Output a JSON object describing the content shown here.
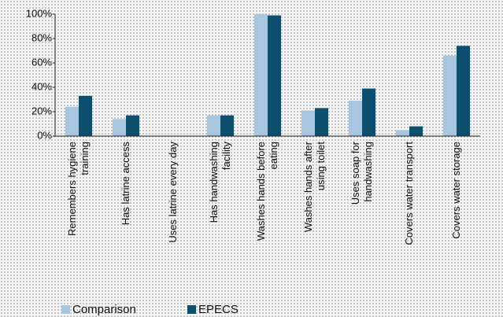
{
  "chart_data": {
    "type": "bar",
    "categories": [
      "Remembers hygiene training",
      "Has latrine access",
      "Uses latrine every day",
      "Has handwashing facility",
      "Washes hands before eating",
      "Washes hands after using toilet",
      "Uses soap for handwashing",
      "Covers water transport",
      "Covers water storage"
    ],
    "series": [
      {
        "name": "Comparison",
        "color": "#a9c6e0",
        "values": [
          24,
          14,
          0,
          17,
          100,
          21,
          29,
          5,
          66
        ]
      },
      {
        "name": "EPECS",
        "color": "#0e4f6d",
        "values": [
          33,
          17,
          0,
          17,
          99,
          23,
          39,
          8,
          74
        ]
      }
    ],
    "ylim": [
      0,
      100
    ],
    "yticks": [
      {
        "value": 0,
        "label": "0%"
      },
      {
        "value": 20,
        "label": "20%"
      },
      {
        "value": 40,
        "label": "40%"
      },
      {
        "value": 60,
        "label": "60%"
      },
      {
        "value": 80,
        "label": "80%"
      },
      {
        "value": 100,
        "label": "100%"
      }
    ],
    "grid": false,
    "legend": "bottom"
  }
}
